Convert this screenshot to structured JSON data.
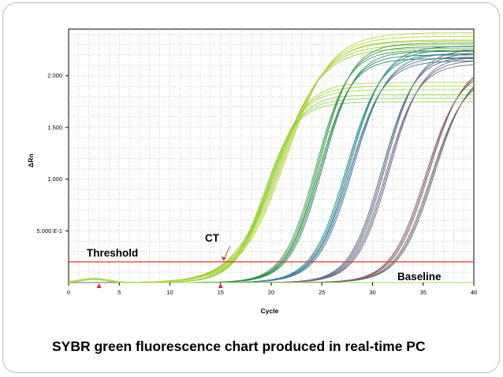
{
  "chart_data": {
    "type": "line",
    "title": "",
    "xlabel": "Cycle",
    "ylabel": "ΔRn",
    "xlim": [
      0,
      40
    ],
    "ylim": [
      0,
      2.45
    ],
    "x_ticks": [
      0,
      5,
      10,
      15,
      20,
      25,
      30,
      35,
      40
    ],
    "y_ticks": [
      {
        "value": 0.5,
        "label": "5.000 E-1"
      },
      {
        "value": 1.0,
        "label": "1.000"
      },
      {
        "value": 1.5,
        "label": "1.500"
      },
      {
        "value": 2.0,
        "label": "2.000"
      }
    ],
    "grid": true,
    "threshold": 0.2,
    "threshold_color": "#e53935",
    "annotations": {
      "threshold_label": "Threshold",
      "ct_label": "CT",
      "baseline_label": "Baseline"
    },
    "ct_cycle": 15.3,
    "baseline_markers": [
      3,
      15
    ],
    "curve_groups": [
      {
        "midpoint": 19.5,
        "plateau": 1.78,
        "slope": 1.6,
        "color": "#8fd45a"
      },
      {
        "midpoint": 19.8,
        "plateau": 1.9,
        "slope": 1.7,
        "color": "#a6d84a"
      },
      {
        "midpoint": 20.8,
        "plateau": 2.3,
        "slope": 2.2,
        "color": "#9acd32"
      },
      {
        "midpoint": 21.3,
        "plateau": 2.38,
        "slope": 2.2,
        "color": "#b5d63c"
      },
      {
        "midpoint": 24.6,
        "plateau": 2.28,
        "slope": 1.6,
        "color": "#3f9e4a"
      },
      {
        "midpoint": 24.9,
        "plateau": 2.2,
        "slope": 1.6,
        "color": "#2e8b57"
      },
      {
        "midpoint": 27.6,
        "plateau": 2.25,
        "slope": 1.7,
        "color": "#2a8c8c"
      },
      {
        "midpoint": 27.9,
        "plateau": 2.18,
        "slope": 1.7,
        "color": "#4a7a9c"
      },
      {
        "midpoint": 31.1,
        "plateau": 2.22,
        "slope": 1.6,
        "color": "#596e86"
      },
      {
        "midpoint": 31.5,
        "plateau": 2.15,
        "slope": 1.6,
        "color": "#7a6a8c"
      },
      {
        "midpoint": 35.4,
        "plateau": 2.1,
        "slope": 1.7,
        "color": "#8c5a64"
      },
      {
        "midpoint": 35.9,
        "plateau": 2.05,
        "slope": 1.7,
        "color": "#6a6a6a"
      }
    ],
    "baseline_curve_color": "#a6d84a"
  },
  "caption": "SYBR green fluorescence chart produced in real-time PC"
}
